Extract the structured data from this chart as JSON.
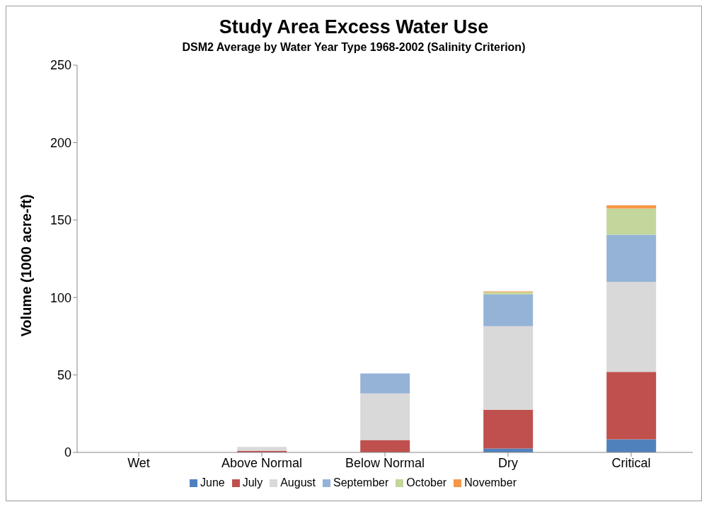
{
  "chart_data": {
    "type": "bar",
    "title": "Study Area Excess Water Use",
    "subtitle": "DSM2 Average by Water Year Type 1968-2002 (Salinity Criterion)",
    "ylabel": "Volume (1000 acre-ft)",
    "categories": [
      "Wet",
      "Above Normal",
      "Below Normal",
      "Dry",
      "Critical"
    ],
    "stacked": true,
    "ylim": [
      0,
      250
    ],
    "yticks": [
      0,
      50,
      100,
      150,
      200,
      250
    ],
    "legend": "bottom",
    "series": [
      {
        "name": "June",
        "color": "#4f81bd",
        "values": [
          0,
          0,
          0,
          2.5,
          8.5
        ]
      },
      {
        "name": "July",
        "color": "#c0504d",
        "values": [
          0,
          1,
          8,
          25,
          43.5
        ]
      },
      {
        "name": "August",
        "color": "#d9d9d9",
        "values": [
          0,
          2.5,
          30,
          54,
          58
        ]
      },
      {
        "name": "September",
        "color": "#95b3d7",
        "values": [
          0,
          0,
          13,
          20.5,
          30.5
        ]
      },
      {
        "name": "October",
        "color": "#c3d69b",
        "values": [
          0,
          0,
          0,
          1.5,
          17
        ]
      },
      {
        "name": "November",
        "color": "#f79646",
        "values": [
          0,
          0,
          0,
          0.5,
          2
        ]
      }
    ]
  }
}
